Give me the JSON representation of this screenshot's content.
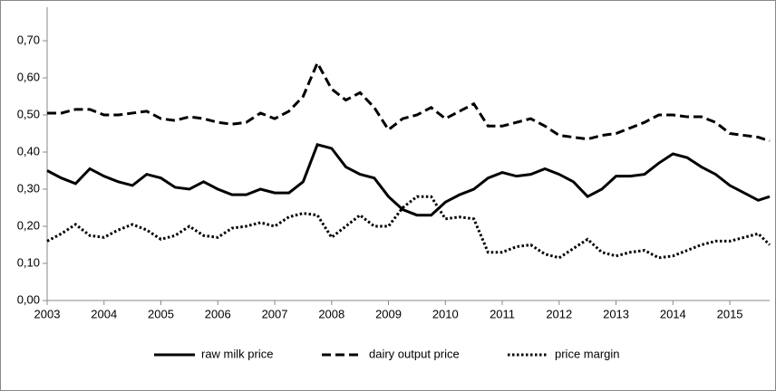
{
  "chart_data": {
    "type": "line",
    "x": [
      2003,
      2003.25,
      2003.5,
      2003.75,
      2004,
      2004.25,
      2004.5,
      2004.75,
      2005,
      2005.25,
      2005.5,
      2005.75,
      2006,
      2006.25,
      2006.5,
      2006.75,
      2007,
      2007.25,
      2007.5,
      2007.75,
      2008,
      2008.25,
      2008.5,
      2008.75,
      2009,
      2009.25,
      2009.5,
      2009.75,
      2010,
      2010.25,
      2010.5,
      2010.75,
      2011,
      2011.25,
      2011.5,
      2011.75,
      2012,
      2012.25,
      2012.5,
      2012.75,
      2013,
      2013.25,
      2013.5,
      2013.75,
      2014,
      2014.25,
      2014.5,
      2014.75,
      2015,
      2015.25,
      2015.5,
      2015.7
    ],
    "series": [
      {
        "name": "raw milk price",
        "color": "#000000",
        "dash": "solid",
        "values": [
          0.35,
          0.33,
          0.315,
          0.355,
          0.335,
          0.32,
          0.31,
          0.34,
          0.33,
          0.305,
          0.3,
          0.32,
          0.3,
          0.285,
          0.285,
          0.3,
          0.29,
          0.29,
          0.32,
          0.42,
          0.41,
          0.36,
          0.34,
          0.33,
          0.28,
          0.245,
          0.23,
          0.23,
          0.265,
          0.285,
          0.3,
          0.33,
          0.345,
          0.335,
          0.34,
          0.355,
          0.34,
          0.32,
          0.28,
          0.3,
          0.335,
          0.335,
          0.34,
          0.37,
          0.395,
          0.385,
          0.36,
          0.34,
          0.31,
          0.29,
          0.27,
          0.28
        ]
      },
      {
        "name": "dairy output price",
        "color": "#000000",
        "dash": "dashed",
        "values": [
          0.505,
          0.505,
          0.515,
          0.515,
          0.5,
          0.5,
          0.505,
          0.51,
          0.49,
          0.485,
          0.495,
          0.49,
          0.48,
          0.475,
          0.48,
          0.505,
          0.49,
          0.51,
          0.55,
          0.64,
          0.57,
          0.54,
          0.56,
          0.52,
          0.46,
          0.49,
          0.5,
          0.52,
          0.49,
          0.51,
          0.53,
          0.47,
          0.47,
          0.48,
          0.49,
          0.47,
          0.445,
          0.44,
          0.435,
          0.445,
          0.45,
          0.465,
          0.48,
          0.5,
          0.5,
          0.495,
          0.495,
          0.48,
          0.45,
          0.445,
          0.44,
          0.43
        ]
      },
      {
        "name": "price margin",
        "color": "#000000",
        "dash": "dotted",
        "values": [
          0.16,
          0.18,
          0.205,
          0.175,
          0.17,
          0.19,
          0.205,
          0.19,
          0.165,
          0.175,
          0.2,
          0.175,
          0.17,
          0.195,
          0.2,
          0.21,
          0.2,
          0.225,
          0.235,
          0.23,
          0.17,
          0.2,
          0.23,
          0.2,
          0.2,
          0.25,
          0.28,
          0.28,
          0.22,
          0.225,
          0.22,
          0.13,
          0.13,
          0.145,
          0.15,
          0.125,
          0.115,
          0.14,
          0.165,
          0.13,
          0.12,
          0.13,
          0.135,
          0.115,
          0.12,
          0.135,
          0.15,
          0.16,
          0.16,
          0.17,
          0.18,
          0.15
        ]
      }
    ],
    "xlim": [
      2003,
      2015.7
    ],
    "xticks": [
      2003,
      2004,
      2005,
      2006,
      2007,
      2008,
      2009,
      2010,
      2011,
      2012,
      2013,
      2014,
      2015
    ],
    "ylim": [
      0,
      0.7
    ],
    "yticks": [
      {
        "value": 0,
        "label": "0,00"
      },
      {
        "value": 0.1,
        "label": "0,10"
      },
      {
        "value": 0.2,
        "label": "0,20"
      },
      {
        "value": 0.3,
        "label": "0,30"
      },
      {
        "value": 0.4,
        "label": "0,40"
      },
      {
        "value": 0.5,
        "label": "0,50"
      },
      {
        "value": 0.6,
        "label": "0,60"
      },
      {
        "value": 0.7,
        "label": "0,70"
      }
    ],
    "legend": "bottom"
  }
}
